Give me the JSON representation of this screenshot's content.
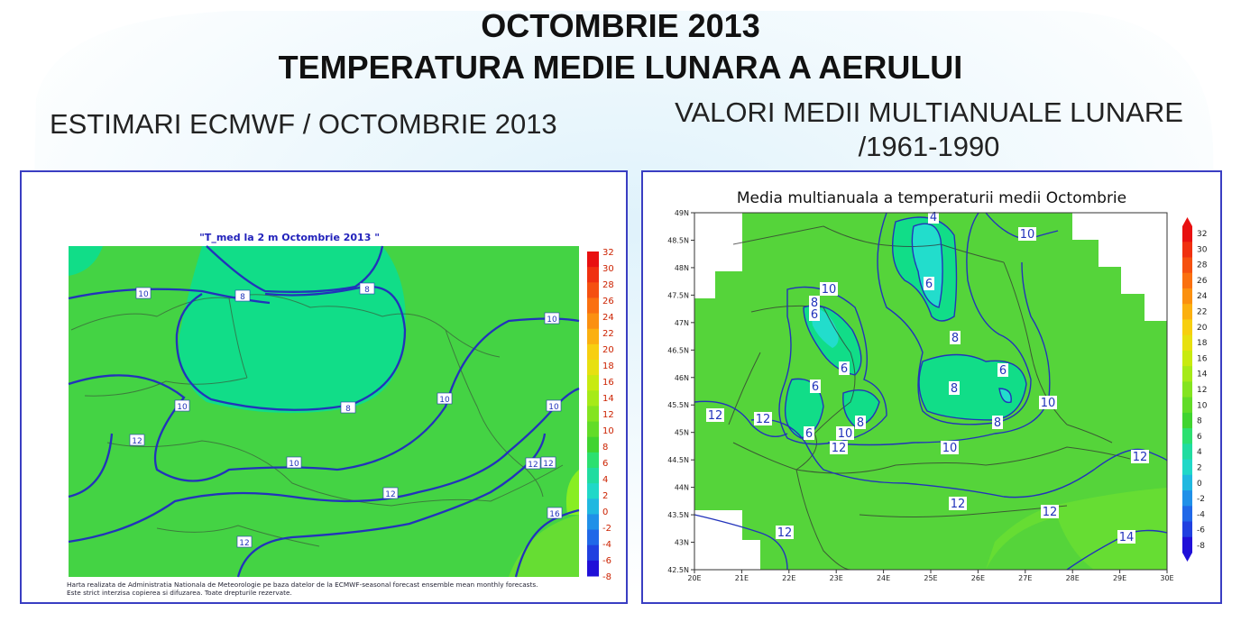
{
  "page": {
    "title_line1": "OCTOMBRIE 2013",
    "title_line2": "TEMPERATURA MEDIE LUNARA A AERULUI",
    "subtitle_left": "ESTIMARI ECMWF / OCTOMBRIE 2013",
    "subtitle_right_line1": "VALORI MEDII MULTIANUALE LUNARE",
    "subtitle_right_line2": "/1961-1990"
  },
  "colors": {
    "contour": "#2233bb",
    "land_green": "#44d344",
    "cool_green": "#11dd88",
    "warm_green": "#66dd33",
    "cyan": "#22ddcc",
    "warm_yellow_green": "#88ee22"
  },
  "chart_data": [
    {
      "type": "heatmap",
      "title": "\"T_med la 2 m Octombrie 2013 \"",
      "xlabel": "",
      "ylabel": "",
      "colorbar": {
        "ticks": [
          32,
          30,
          28,
          26,
          24,
          22,
          20,
          18,
          16,
          14,
          12,
          10,
          8,
          6,
          4,
          2,
          0,
          -2,
          -4,
          -6,
          -8
        ],
        "colors": [
          "#e81010",
          "#f03010",
          "#f55010",
          "#fa7010",
          "#fb9010",
          "#fbb010",
          "#f7cf10",
          "#e7e010",
          "#c8ea10",
          "#a6ea18",
          "#84e420",
          "#62dc28",
          "#40d430",
          "#2ce070",
          "#20dca0",
          "#20d8c8",
          "#20b8e0",
          "#2090e8",
          "#2068e8",
          "#2040e0",
          "#2010d8"
        ]
      },
      "contour_labels": [
        "10",
        "8",
        "8",
        "10",
        "10",
        "8",
        "10",
        "10",
        "12",
        "12",
        "10",
        "12",
        "12",
        "16",
        "12"
      ],
      "footnote_line1": "Harta realizata de Administratia Nationala de Meteorologie pe baza datelor de la ECMWF-seasonal forecast ensemble mean monthly forecasts.",
      "footnote_line2": "Este strict interzisa copierea si difuzarea. Toate drepturile rezervate."
    },
    {
      "type": "heatmap",
      "title": "Media multianuala a temperaturii medii Octombrie",
      "xlabel": "",
      "ylabel": "",
      "x_ticks": [
        "20E",
        "21E",
        "22E",
        "23E",
        "24E",
        "25E",
        "26E",
        "27E",
        "28E",
        "29E",
        "30E"
      ],
      "y_ticks": [
        "49N",
        "48.5N",
        "48N",
        "47.5N",
        "47N",
        "46.5N",
        "46N",
        "45.5N",
        "45N",
        "44.5N",
        "44N",
        "43.5N",
        "43N",
        "42.5N"
      ],
      "xlim": [
        20,
        30
      ],
      "ylim": [
        42.5,
        49
      ],
      "colorbar": {
        "ticks": [
          32,
          30,
          28,
          26,
          24,
          22,
          20,
          18,
          16,
          14,
          12,
          10,
          8,
          6,
          4,
          2,
          0,
          -2,
          -4,
          -6,
          -8
        ],
        "colors": [
          "#e81010",
          "#f03010",
          "#f55010",
          "#fa7010",
          "#fb9010",
          "#fbb010",
          "#f7cf10",
          "#e7e010",
          "#c8ea10",
          "#a6ea18",
          "#84e420",
          "#62dc28",
          "#40d430",
          "#2ce070",
          "#20dca0",
          "#20d8c8",
          "#20b8e0",
          "#2090e8",
          "#2068e8",
          "#2040e0",
          "#2010d8"
        ]
      },
      "contour_labels": [
        "4",
        "10",
        "10",
        "8",
        "6",
        "6",
        "8",
        "6",
        "6",
        "6",
        "8",
        "12",
        "12",
        "8",
        "10",
        "6",
        "8",
        "10",
        "12",
        "10",
        "12",
        "12",
        "12",
        "12",
        "14"
      ]
    }
  ]
}
